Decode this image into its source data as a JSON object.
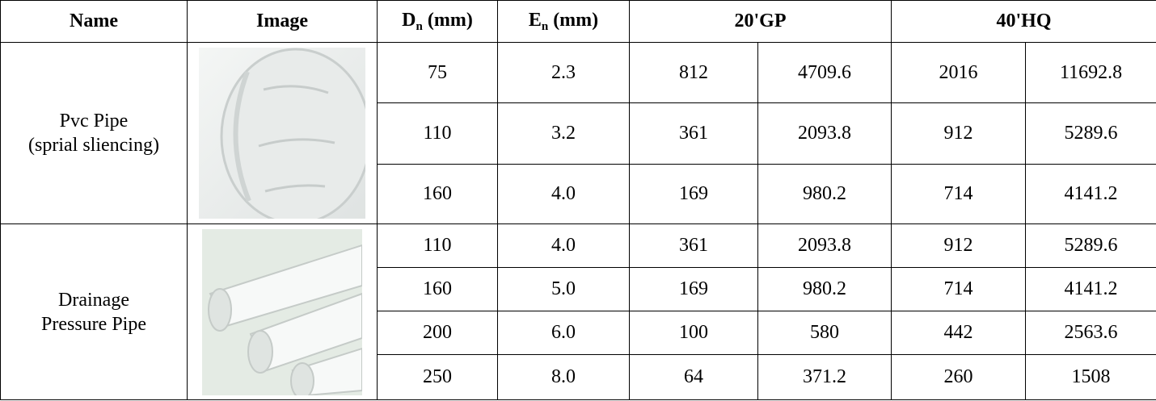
{
  "table": {
    "headers": [
      "Name",
      "Image",
      {
        "base": "D",
        "sub": "n",
        "unit": "(mm)"
      },
      {
        "base": "E",
        "sub": "n",
        "unit": "(mm)"
      },
      "20'GP",
      "40'HQ"
    ],
    "groups": [
      {
        "name": [
          "Pvc Pipe",
          "(sprial sliencing)"
        ],
        "rows": [
          [
            "75",
            "2.3",
            "812",
            "4709.6",
            "2016",
            "11692.8"
          ],
          [
            "110",
            "3.2",
            "361",
            "2093.8",
            "912",
            "5289.6"
          ],
          [
            "160",
            "4.0",
            "169",
            "980.2",
            "714",
            "4141.2"
          ]
        ]
      },
      {
        "name": [
          "Drainage",
          "Pressure Pipe"
        ],
        "rows": [
          [
            "110",
            "4.0",
            "361",
            "2093.8",
            "912",
            "5289.6"
          ],
          [
            "160",
            "5.0",
            "169",
            "980.2",
            "714",
            "4141.2"
          ],
          [
            "200",
            "6.0",
            "100",
            "580",
            "442",
            "2563.6"
          ],
          [
            "250",
            "8.0",
            "64",
            "371.2",
            "260",
            "1508"
          ]
        ]
      }
    ]
  }
}
